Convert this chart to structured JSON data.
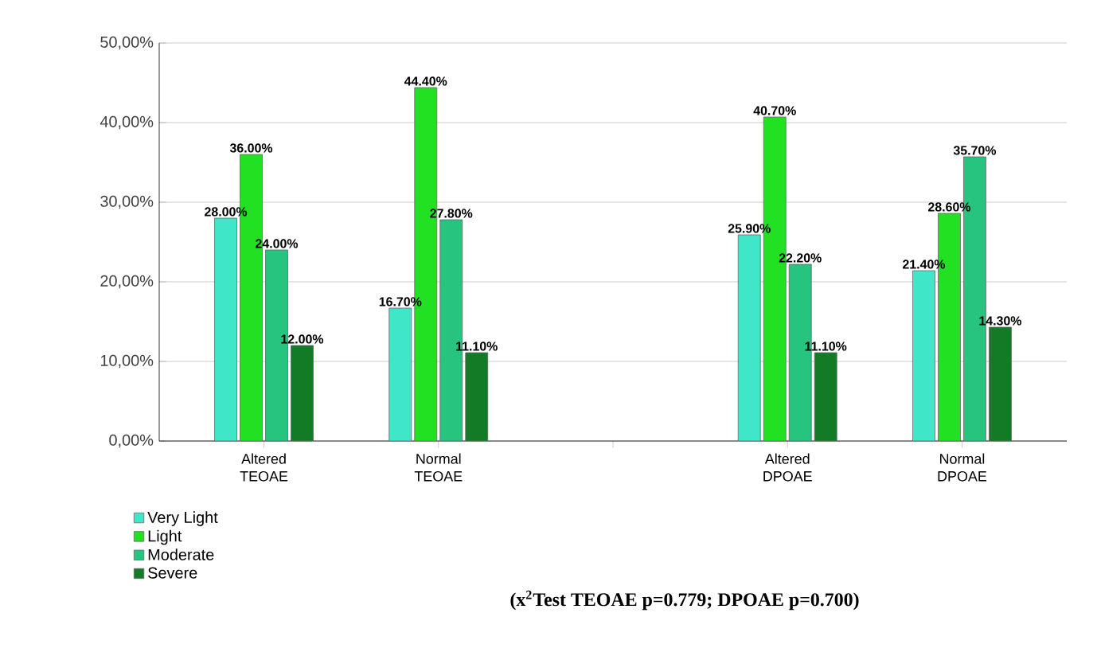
{
  "chart_data": {
    "type": "bar",
    "categories": [
      "Altered TEOAE",
      "Normal TEOAE",
      null,
      "Altered DPOAE",
      "Normal DPOAE"
    ],
    "series": [
      {
        "name": "Very Light",
        "color": "#40e6c8",
        "values": [
          28.0,
          16.7,
          null,
          25.9,
          21.4
        ],
        "value_labels": [
          "28.00%",
          "16.70%",
          null,
          "25.90%",
          "21.40%"
        ]
      },
      {
        "name": "Light",
        "color": "#22e022",
        "values": [
          36.0,
          44.4,
          null,
          40.7,
          28.6
        ],
        "value_labels": [
          "36.00%",
          "44.40%",
          null,
          "40.70%",
          "28.60%"
        ]
      },
      {
        "name": "Moderate",
        "color": "#26c47e",
        "values": [
          24.0,
          27.8,
          null,
          22.2,
          35.7
        ],
        "value_labels": [
          "24.00%",
          "27.80%",
          null,
          "22.20%",
          "35.70%"
        ]
      },
      {
        "name": "Severe",
        "color": "#137a26",
        "values": [
          12.0,
          11.1,
          null,
          11.1,
          14.3
        ],
        "value_labels": [
          "12.00%",
          "11.10%",
          null,
          "11.10%",
          "14.30%"
        ]
      }
    ],
    "ylim": [
      0,
      50
    ],
    "yticks": [
      {
        "value": 0,
        "label": "0,00%"
      },
      {
        "value": 10,
        "label": "10,00%"
      },
      {
        "value": 20,
        "label": "20,00%"
      },
      {
        "value": 30,
        "label": "30,00%"
      },
      {
        "value": 40,
        "label": "40,00%"
      },
      {
        "value": 50,
        "label": "50,00%"
      }
    ],
    "grid": "y",
    "legend": "bottom left",
    "annotations": [
      "(x$^{2}$Test TEOAE p=0.779; DPOAE p=0.700)"
    ]
  }
}
